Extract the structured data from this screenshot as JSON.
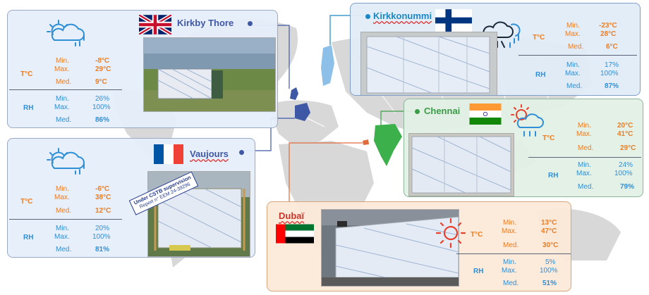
{
  "cards": {
    "kirkby": {
      "city": "Kirkby Thore",
      "temp_label": "T°C",
      "rh_label": "RH",
      "t_min_label": "Min.",
      "t_min": "-8°C",
      "t_max_label": "Max.",
      "t_max": "29°C",
      "t_med_label": "Med.",
      "t_med": "9°C",
      "rh_min_label": "Min.",
      "rh_min": "26%",
      "rh_max_label": "Max.",
      "rh_max": "100%",
      "rh_med_label": "Med.",
      "rh_med": "86%"
    },
    "vaujours": {
      "city": "Vaujours",
      "temp_label": "T°C",
      "rh_label": "RH",
      "t_min_label": "Min.",
      "t_min": "-6°C",
      "t_max_label": "Max.",
      "t_max": "38°C",
      "t_med_label": "Med.",
      "t_med": "12°C",
      "rh_min_label": "Min.",
      "rh_min": "20%",
      "rh_max_label": "Max.",
      "rh_max": "100%",
      "rh_med_label": "Med.",
      "rh_med": "81%",
      "stamp_line1": "Under CSTB supervision",
      "stamp_line2": "Report n° EEM 24-39296"
    },
    "kirkkonummi": {
      "city": "Kirkkonummi",
      "temp_label": "T°C",
      "rh_label": "RH",
      "t_min_label": "Min.",
      "t_min": "-23°C",
      "t_max_label": "Max.",
      "t_max": "28°C",
      "t_med_label": "Med.",
      "t_med": "6°C",
      "rh_min_label": "Min.",
      "rh_min": "17%",
      "rh_max_label": "Max.",
      "rh_max": "100%",
      "rh_med_label": "Med.",
      "rh_med": "87%"
    },
    "chennai": {
      "city": "Chennai",
      "temp_label": "T°C",
      "rh_label": "RH",
      "t_min_label": "Min.",
      "t_min": "20°C",
      "t_max_label": "Max.",
      "t_max": "41°C",
      "t_med_label": "Med.",
      "t_med": "29°C",
      "rh_min_label": "Min.",
      "rh_min": "24%",
      "rh_max_label": "Max.",
      "rh_max": "100%",
      "rh_med_label": "Med.",
      "rh_med": "79%"
    },
    "dubai": {
      "city": "Dubaï",
      "temp_label": "T°C",
      "rh_label": "RH",
      "t_min_label": "Min.",
      "t_min": "13°C",
      "t_max_label": "Max.",
      "t_max": "47°C",
      "t_med_label": "Med.",
      "t_med": "30°C",
      "rh_min_label": "Min.",
      "rh_min": "5%",
      "rh_max_label": "Max.",
      "rh_max": "100%",
      "rh_med_label": "Med.",
      "rh_med": "51%"
    }
  },
  "colors": {
    "temperature": "#ee7d22",
    "humidity": "#2f8fd6",
    "uk_link": "#3f58a6",
    "finland_link": "#1a88c6",
    "india_link": "#3a9c46",
    "dubai_link": "#e06a3a"
  },
  "icons": [
    "partly-cloudy-rain-icon",
    "snow-rain-icon",
    "sun-rain-icon",
    "sun-icon"
  ],
  "flags": [
    "uk-flag",
    "france-flag",
    "finland-flag",
    "india-flag",
    "uae-flag"
  ]
}
